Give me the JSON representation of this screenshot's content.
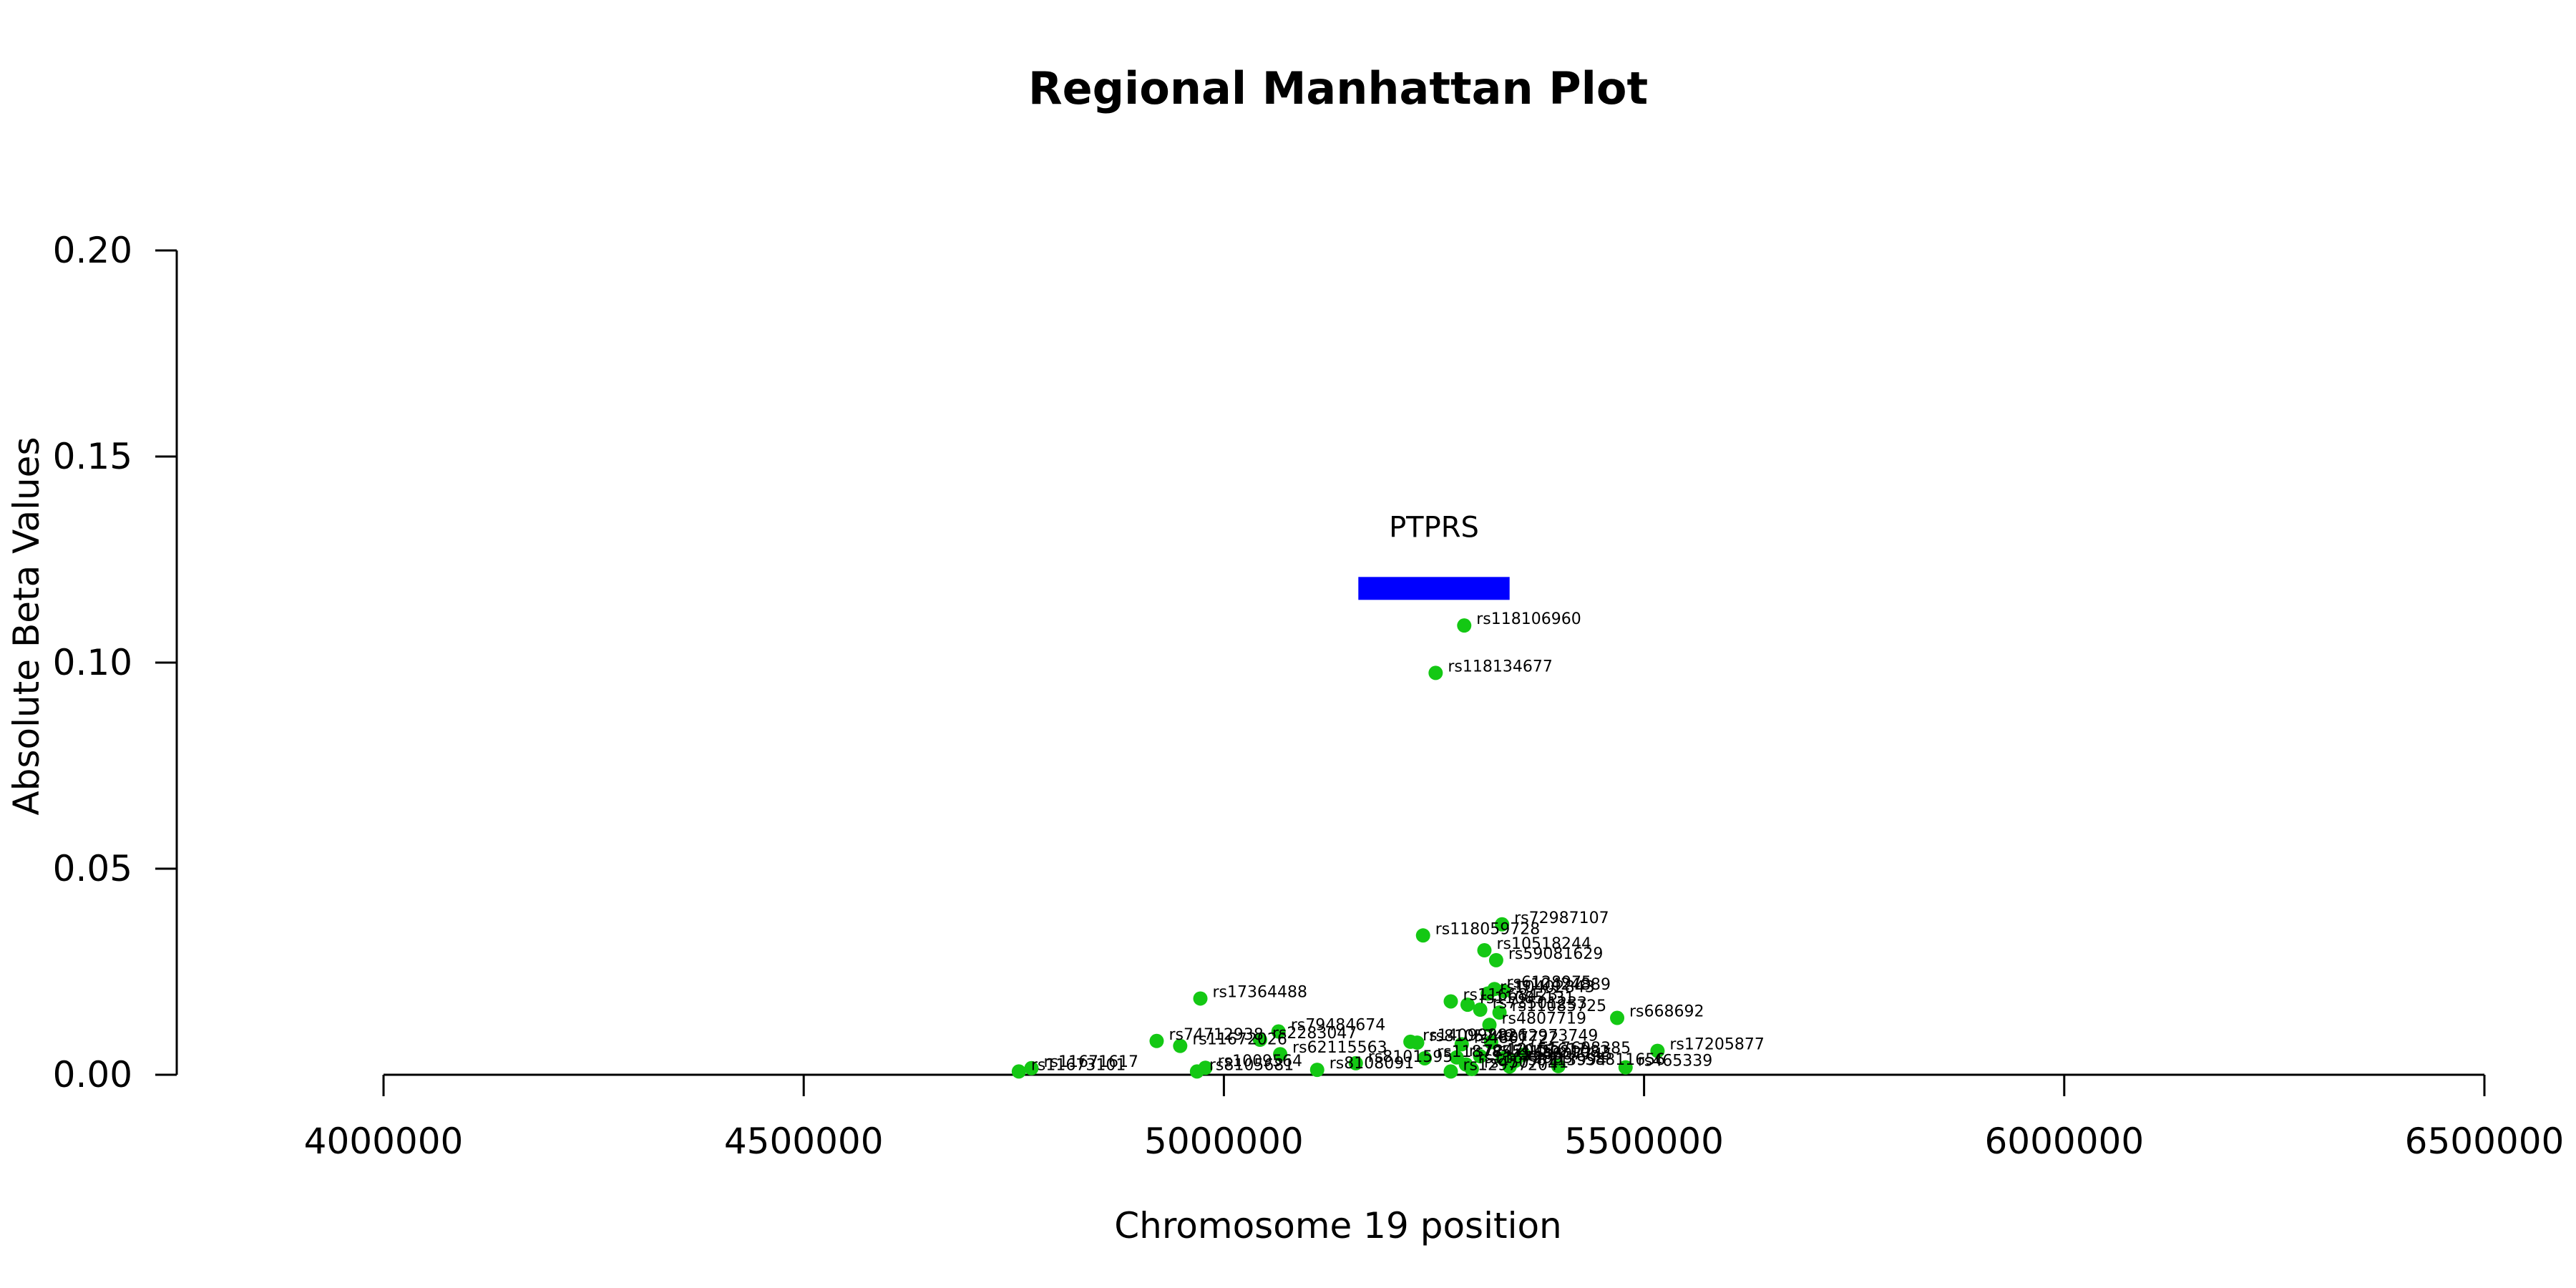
{
  "chart_data": {
    "type": "scatter",
    "title": "Regional Manhattan Plot",
    "xlabel": "Chromosome 19 position",
    "ylabel": "Absolute Beta Values",
    "xlim": [
      4000000,
      6500000
    ],
    "ylim": [
      0,
      0.2
    ],
    "x_ticks": [
      "4000000",
      "4500000",
      "5000000",
      "5500000",
      "6000000",
      "6500000"
    ],
    "y_ticks": [
      "0.00",
      "0.05",
      "0.10",
      "0.15",
      "0.20"
    ],
    "grid": false,
    "point_color": "#14c814",
    "gene_color": "#0000ff",
    "genes": [
      {
        "name": "PTPRS",
        "start": 5160000,
        "end": 5340000,
        "y": 0.118
      }
    ],
    "points": [
      {
        "rsid": "rs118106960",
        "x": 5286000,
        "y": 0.109
      },
      {
        "rsid": "rs118134677",
        "x": 5252000,
        "y": 0.0975
      },
      {
        "rsid": "rs72987107",
        "x": 5331000,
        "y": 0.0365
      },
      {
        "rsid": "rs118059728",
        "x": 5237000,
        "y": 0.0338
      },
      {
        "rsid": "rs10518244",
        "x": 5310000,
        "y": 0.0302
      },
      {
        "rsid": "rs59081629",
        "x": 5324000,
        "y": 0.0278
      },
      {
        "rsid": "rs17364488",
        "x": 4972000,
        "y": 0.0185
      },
      {
        "rsid": "rs6128975",
        "x": 5322000,
        "y": 0.0208
      },
      {
        "rsid": "rs10424889",
        "x": 5333000,
        "y": 0.0203
      },
      {
        "rsid": "rs10402843",
        "x": 5314000,
        "y": 0.0197
      },
      {
        "rsid": "rs11668423",
        "x": 5270000,
        "y": 0.0178
      },
      {
        "rsid": "rs11085131",
        "x": 5290000,
        "y": 0.017
      },
      {
        "rsid": "rs73501233",
        "x": 5305000,
        "y": 0.0158
      },
      {
        "rsid": "rs11085725",
        "x": 5328000,
        "y": 0.0151
      },
      {
        "rsid": "rs668692",
        "x": 5468000,
        "y": 0.0138
      },
      {
        "rsid": "rs4807719",
        "x": 5316000,
        "y": 0.0121
      },
      {
        "rsid": "rs79484674",
        "x": 5065000,
        "y": 0.0105
      },
      {
        "rsid": "rs74712938",
        "x": 4920000,
        "y": 0.0082
      },
      {
        "rsid": "rs2283047",
        "x": 5043000,
        "y": 0.0085
      },
      {
        "rsid": "rs11672026",
        "x": 4948000,
        "y": 0.007
      },
      {
        "rsid": "rs140998826",
        "x": 5222000,
        "y": 0.008
      },
      {
        "rsid": "rs8105749",
        "x": 5230000,
        "y": 0.0078
      },
      {
        "rsid": "rs12973749",
        "x": 5318000,
        "y": 0.0079
      },
      {
        "rsid": "rs4807722",
        "x": 5283000,
        "y": 0.0074
      },
      {
        "rsid": "rs17205877",
        "x": 5516000,
        "y": 0.0058
      },
      {
        "rsid": "rs62115563",
        "x": 5067000,
        "y": 0.005
      },
      {
        "rsid": "rs7247045",
        "x": 5277000,
        "y": 0.0042
      },
      {
        "rsid": "rs11878551",
        "x": 5239000,
        "y": 0.004
      },
      {
        "rsid": "rs57698385",
        "x": 5357000,
        "y": 0.0049
      },
      {
        "rsid": "rs12151617",
        "x": 5305000,
        "y": 0.0045
      },
      {
        "rsid": "rs12981082",
        "x": 5332000,
        "y": 0.004
      },
      {
        "rsid": "rs4807745",
        "x": 5347000,
        "y": 0.0034
      },
      {
        "rsid": "rs8101595",
        "x": 5157000,
        "y": 0.0028
      },
      {
        "rsid": "rs11672983",
        "x": 5288000,
        "y": 0.0025
      },
      {
        "rsid": "rs8113994",
        "x": 5340000,
        "y": 0.002
      },
      {
        "rsid": "rs58811656",
        "x": 5398000,
        "y": 0.0021
      },
      {
        "rsid": "rs465339",
        "x": 5478000,
        "y": 0.0018
      },
      {
        "rsid": "rs4507741",
        "x": 5295000,
        "y": 0.0014
      },
      {
        "rsid": "rs8108091",
        "x": 5111000,
        "y": 0.0012
      },
      {
        "rsid": "rs11671617",
        "x": 4771000,
        "y": 0.0016
      },
      {
        "rsid": "rs11673101",
        "x": 4756000,
        "y": 0.0008
      },
      {
        "rsid": "rs1009564",
        "x": 4978000,
        "y": 0.0017
      },
      {
        "rsid": "rs8105681",
        "x": 4968000,
        "y": 0.0008
      },
      {
        "rsid": "rs12977204",
        "x": 5270000,
        "y": 0.0008
      }
    ]
  }
}
